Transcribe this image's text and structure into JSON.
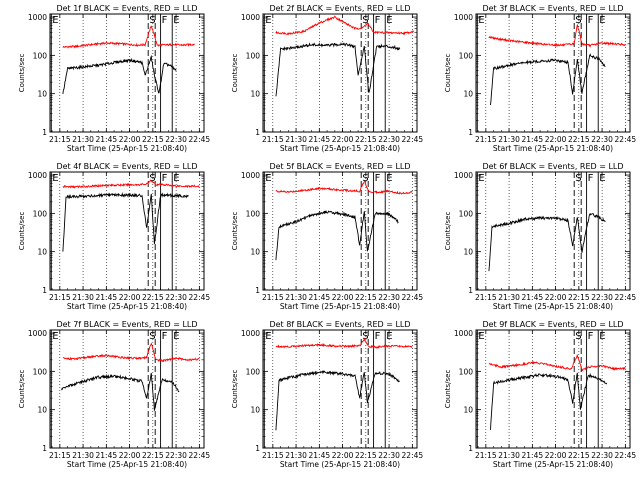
{
  "figure": {
    "y_axis_label": "Counts/sec",
    "x_axis_label": "Start Time (25-Apr-15 21:08:40)",
    "x_tick_labels": [
      "21:15",
      "21:30",
      "21:45",
      "22:00",
      "22:15",
      "22:30",
      "22:45"
    ],
    "y_tick_labels": [
      "1",
      "10",
      "100",
      "1000"
    ],
    "colors": {
      "events": "#000000",
      "lld": "#ff0000",
      "background": "#ffffff"
    }
  },
  "chart_data": [
    {
      "type": "line",
      "title": "Det 1f BLACK = Events, RED = LLD",
      "xlim": [
        "21:08:40",
        "22:48:00"
      ],
      "ylim": [
        1,
        1200
      ],
      "yscale": "log",
      "x_ticks": [
        "21:15",
        "21:30",
        "21:45",
        "22:00",
        "22:15",
        "22:30",
        "22:45"
      ],
      "markers": [
        {
          "label": "E",
          "time": "21:09:30",
          "style": "solid"
        },
        {
          "label": "S",
          "time": "22:12:00",
          "style": "dashed"
        },
        {
          "label": "F",
          "time": "22:20:00",
          "style": "solid"
        },
        {
          "label": "E",
          "time": "22:27:30",
          "style": "solid"
        }
      ],
      "series": [
        {
          "name": "LLD",
          "color": "#ff0000",
          "x": [
            "21:17",
            "21:25",
            "21:35",
            "21:45",
            "21:55",
            "22:05",
            "22:10",
            "22:14",
            "22:18",
            "22:20",
            "22:28",
            "22:35",
            "22:42"
          ],
          "y": [
            165,
            170,
            190,
            210,
            200,
            185,
            190,
            600,
            180,
            185,
            190,
            185,
            195
          ]
        },
        {
          "name": "Events",
          "color": "#000000",
          "x": [
            "21:17",
            "21:20",
            "21:30",
            "21:40",
            "21:50",
            "22:00",
            "22:08",
            "22:10",
            "22:14",
            "22:16",
            "22:19",
            "22:22",
            "22:26",
            "22:30"
          ],
          "y": [
            10,
            45,
            50,
            55,
            65,
            75,
            65,
            30,
            90,
            30,
            10,
            60,
            55,
            40
          ]
        }
      ]
    },
    {
      "type": "line",
      "title": "Det 2f BLACK = Events, RED = LLD",
      "xlim": [
        "21:08:40",
        "22:48:00"
      ],
      "ylim": [
        1,
        1200
      ],
      "yscale": "log",
      "x_ticks": [
        "21:15",
        "21:30",
        "21:45",
        "22:00",
        "22:15",
        "22:30",
        "22:45"
      ],
      "markers": [
        {
          "label": "E",
          "time": "21:09:30",
          "style": "solid"
        },
        {
          "label": "S",
          "time": "22:12:00",
          "style": "dashed"
        },
        {
          "label": "F",
          "time": "22:20:00",
          "style": "solid"
        },
        {
          "label": "E",
          "time": "22:27:30",
          "style": "solid"
        }
      ],
      "series": [
        {
          "name": "LLD",
          "color": "#ff0000",
          "x": [
            "21:17",
            "21:25",
            "21:35",
            "21:45",
            "21:55",
            "22:03",
            "22:08",
            "22:13",
            "22:16",
            "22:20",
            "22:30",
            "22:40",
            "22:46"
          ],
          "y": [
            390,
            370,
            420,
            700,
            1000,
            650,
            500,
            520,
            700,
            400,
            390,
            380,
            420
          ]
        },
        {
          "name": "Events",
          "color": "#000000",
          "x": [
            "21:17",
            "21:20",
            "21:30",
            "21:40",
            "21:50",
            "22:00",
            "22:08",
            "22:10",
            "22:14",
            "22:17",
            "22:22",
            "22:30",
            "22:37"
          ],
          "y": [
            8,
            145,
            160,
            190,
            180,
            200,
            170,
            30,
            170,
            10,
            175,
            170,
            150
          ]
        }
      ]
    },
    {
      "type": "line",
      "title": "Det 3f BLACK = Events, RED = LLD",
      "xlim": [
        "21:08:40",
        "22:48:00"
      ],
      "ylim": [
        1,
        1200
      ],
      "yscale": "log",
      "x_ticks": [
        "21:15",
        "21:30",
        "21:45",
        "22:00",
        "22:15",
        "22:30",
        "22:45"
      ],
      "markers": [
        {
          "label": "E",
          "time": "21:09:30",
          "style": "solid"
        },
        {
          "label": "S",
          "time": "22:12:00",
          "style": "dashed"
        },
        {
          "label": "F",
          "time": "22:20:00",
          "style": "solid"
        },
        {
          "label": "E",
          "time": "22:27:30",
          "style": "solid"
        }
      ],
      "series": [
        {
          "name": "LLD",
          "color": "#ff0000",
          "x": [
            "21:17",
            "21:25",
            "21:35",
            "21:45",
            "21:55",
            "22:05",
            "22:12",
            "22:14",
            "22:17",
            "22:22",
            "22:30",
            "22:38",
            "22:45"
          ],
          "y": [
            300,
            260,
            230,
            210,
            190,
            185,
            200,
            650,
            200,
            180,
            210,
            200,
            190
          ]
        },
        {
          "name": "Events",
          "color": "#000000",
          "x": [
            "21:18",
            "21:20",
            "21:30",
            "21:40",
            "21:50",
            "22:00",
            "22:08",
            "22:11",
            "22:14",
            "22:17",
            "22:22",
            "22:28",
            "22:32"
          ],
          "y": [
            5,
            45,
            55,
            65,
            70,
            75,
            65,
            10,
            80,
            10,
            100,
            80,
            50
          ]
        }
      ]
    },
    {
      "type": "line",
      "title": "Det 4f BLACK = Events, RED = LLD",
      "xlim": [
        "21:08:40",
        "22:48:00"
      ],
      "ylim": [
        1,
        1200
      ],
      "yscale": "log",
      "x_ticks": [
        "21:15",
        "21:30",
        "21:45",
        "22:00",
        "22:15",
        "22:30",
        "22:45"
      ],
      "markers": [
        {
          "label": "E",
          "time": "21:09:30",
          "style": "solid"
        },
        {
          "label": "S",
          "time": "22:12:00",
          "style": "dashed"
        },
        {
          "label": "F",
          "time": "22:20:00",
          "style": "solid"
        },
        {
          "label": "E",
          "time": "22:27:30",
          "style": "solid"
        }
      ],
      "series": [
        {
          "name": "LLD",
          "color": "#ff0000",
          "x": [
            "21:17",
            "21:25",
            "21:35",
            "21:45",
            "21:55",
            "22:05",
            "22:11",
            "22:14",
            "22:17",
            "22:22",
            "22:30",
            "22:38",
            "22:45"
          ],
          "y": [
            500,
            490,
            510,
            540,
            550,
            560,
            580,
            720,
            560,
            560,
            520,
            510,
            510
          ]
        },
        {
          "name": "Events",
          "color": "#000000",
          "x": [
            "21:17",
            "21:19",
            "21:30",
            "21:40",
            "21:50",
            "22:00",
            "22:08",
            "22:11",
            "22:14",
            "22:16",
            "22:20",
            "22:30",
            "22:38"
          ],
          "y": [
            10,
            270,
            280,
            290,
            300,
            300,
            290,
            40,
            330,
            15,
            300,
            290,
            280
          ]
        }
      ]
    },
    {
      "type": "line",
      "title": "Det 5f BLACK = Events, RED = LLD",
      "xlim": [
        "21:08:40",
        "22:48:00"
      ],
      "ylim": [
        1,
        1200
      ],
      "yscale": "log",
      "x_ticks": [
        "21:15",
        "21:30",
        "21:45",
        "22:00",
        "22:15",
        "22:30",
        "22:45"
      ],
      "markers": [
        {
          "label": "E",
          "time": "21:09:30",
          "style": "solid"
        },
        {
          "label": "S",
          "time": "22:12:00",
          "style": "dashed"
        },
        {
          "label": "F",
          "time": "22:20:00",
          "style": "solid"
        },
        {
          "label": "E",
          "time": "22:27:30",
          "style": "solid"
        }
      ],
      "series": [
        {
          "name": "LLD",
          "color": "#ff0000",
          "x": [
            "21:17",
            "21:25",
            "21:35",
            "21:45",
            "21:55",
            "22:05",
            "22:11",
            "22:14",
            "22:17",
            "22:22",
            "22:30",
            "22:38",
            "22:45"
          ],
          "y": [
            380,
            360,
            400,
            450,
            420,
            390,
            380,
            700,
            370,
            360,
            380,
            330,
            360
          ]
        },
        {
          "name": "Events",
          "color": "#000000",
          "x": [
            "21:17",
            "21:19",
            "21:30",
            "21:40",
            "21:50",
            "22:00",
            "22:08",
            "22:11",
            "22:14",
            "22:16",
            "22:21",
            "22:30",
            "22:36"
          ],
          "y": [
            6,
            45,
            60,
            90,
            110,
            95,
            80,
            15,
            110,
            10,
            100,
            95,
            60
          ]
        }
      ]
    },
    {
      "type": "line",
      "title": "Det 6f BLACK = Events, RED = LLD",
      "xlim": [
        "21:08:40",
        "22:48:00"
      ],
      "ylim": [
        1,
        1200
      ],
      "yscale": "log",
      "x_ticks": [
        "21:15",
        "21:30",
        "21:45",
        "22:00",
        "22:15",
        "22:30",
        "22:45"
      ],
      "markers": [
        {
          "label": "E",
          "time": "21:09:30",
          "style": "solid"
        },
        {
          "label": "S",
          "time": "22:12:00",
          "style": "dashed"
        },
        {
          "label": "F",
          "time": "22:20:00",
          "style": "solid"
        },
        {
          "label": "E",
          "time": "22:27:30",
          "style": "solid"
        }
      ],
      "series": [
        {
          "name": "Events",
          "color": "#000000",
          "x": [
            "21:17",
            "21:19",
            "21:30",
            "21:40",
            "21:50",
            "22:00",
            "22:08",
            "22:11",
            "22:14",
            "22:17",
            "22:22",
            "22:28",
            "22:32"
          ],
          "y": [
            3,
            45,
            55,
            70,
            75,
            75,
            65,
            15,
            80,
            10,
            100,
            80,
            60
          ]
        }
      ]
    },
    {
      "type": "line",
      "title": "Det 7f BLACK = Events, RED = LLD",
      "xlim": [
        "21:08:40",
        "22:48:00"
      ],
      "ylim": [
        1,
        1200
      ],
      "yscale": "log",
      "x_ticks": [
        "21:15",
        "21:30",
        "21:45",
        "22:00",
        "22:15",
        "22:30",
        "22:45"
      ],
      "markers": [
        {
          "label": "E",
          "time": "21:09:30",
          "style": "solid"
        },
        {
          "label": "S",
          "time": "22:12:00",
          "style": "dashed"
        },
        {
          "label": "F",
          "time": "22:20:00",
          "style": "solid"
        },
        {
          "label": "E",
          "time": "22:27:30",
          "style": "solid"
        }
      ],
      "series": [
        {
          "name": "LLD",
          "color": "#ff0000",
          "x": [
            "21:17",
            "21:25",
            "21:35",
            "21:45",
            "21:55",
            "22:05",
            "22:11",
            "22:14",
            "22:17",
            "22:22",
            "22:30",
            "22:38",
            "22:45"
          ],
          "y": [
            220,
            210,
            240,
            260,
            230,
            220,
            230,
            550,
            200,
            190,
            220,
            200,
            210
          ]
        },
        {
          "name": "Events",
          "color": "#000000",
          "x": [
            "21:16",
            "21:20",
            "21:30",
            "21:40",
            "21:50",
            "22:00",
            "22:08",
            "22:11",
            "22:14",
            "22:16",
            "22:21",
            "22:28",
            "22:32"
          ],
          "y": [
            35,
            40,
            55,
            70,
            75,
            65,
            55,
            20,
            90,
            10,
            60,
            50,
            30
          ]
        }
      ]
    },
    {
      "type": "line",
      "title": "Det 8f BLACK = Events, RED = LLD",
      "xlim": [
        "21:08:40",
        "22:48:00"
      ],
      "ylim": [
        1,
        1200
      ],
      "yscale": "log",
      "x_ticks": [
        "21:15",
        "21:30",
        "21:45",
        "22:00",
        "22:15",
        "22:30",
        "22:45"
      ],
      "markers": [
        {
          "label": "E",
          "time": "21:09:30",
          "style": "solid"
        },
        {
          "label": "S",
          "time": "22:12:00",
          "style": "dashed"
        },
        {
          "label": "F",
          "time": "22:20:00",
          "style": "solid"
        },
        {
          "label": "E",
          "time": "22:27:30",
          "style": "solid"
        }
      ],
      "series": [
        {
          "name": "LLD",
          "color": "#ff0000",
          "x": [
            "21:17",
            "21:25",
            "21:35",
            "21:45",
            "21:55",
            "22:05",
            "22:11",
            "22:14",
            "22:17",
            "22:22",
            "22:30",
            "22:38",
            "22:45"
          ],
          "y": [
            450,
            440,
            470,
            490,
            460,
            450,
            470,
            700,
            440,
            430,
            460,
            450,
            440
          ]
        },
        {
          "name": "Events",
          "color": "#000000",
          "x": [
            "21:17",
            "21:19",
            "21:30",
            "21:40",
            "21:50",
            "22:00",
            "22:08",
            "22:11",
            "22:14",
            "22:16",
            "22:21",
            "22:30",
            "22:37"
          ],
          "y": [
            3,
            60,
            75,
            90,
            95,
            85,
            75,
            20,
            100,
            15,
            90,
            85,
            55
          ]
        }
      ]
    },
    {
      "type": "line",
      "title": "Det 9f BLACK = Events, RED = LLD",
      "xlim": [
        "21:08:40",
        "22:48:00"
      ],
      "ylim": [
        1,
        1200
      ],
      "yscale": "log",
      "x_ticks": [
        "21:15",
        "21:30",
        "21:45",
        "22:00",
        "22:15",
        "22:30",
        "22:45"
      ],
      "markers": [
        {
          "label": "E",
          "time": "21:09:30",
          "style": "solid"
        },
        {
          "label": "S",
          "time": "22:12:00",
          "style": "dashed"
        },
        {
          "label": "F",
          "time": "22:20:00",
          "style": "solid"
        },
        {
          "label": "E",
          "time": "22:27:30",
          "style": "solid"
        }
      ],
      "series": [
        {
          "name": "LLD",
          "color": "#ff0000",
          "x": [
            "21:17",
            "21:25",
            "21:35",
            "21:45",
            "21:55",
            "22:05",
            "22:10",
            "22:14",
            "22:17",
            "22:22",
            "22:30",
            "22:38",
            "22:45"
          ],
          "y": [
            160,
            130,
            145,
            170,
            150,
            125,
            115,
            260,
            110,
            130,
            140,
            115,
            120
          ]
        },
        {
          "name": "Events",
          "color": "#000000",
          "x": [
            "21:18",
            "21:20",
            "21:30",
            "21:40",
            "21:50",
            "22:00",
            "22:08",
            "22:11",
            "22:14",
            "22:16",
            "22:21",
            "22:28",
            "22:33"
          ],
          "y": [
            3,
            50,
            60,
            70,
            80,
            75,
            60,
            15,
            90,
            10,
            80,
            65,
            50
          ]
        }
      ]
    }
  ]
}
